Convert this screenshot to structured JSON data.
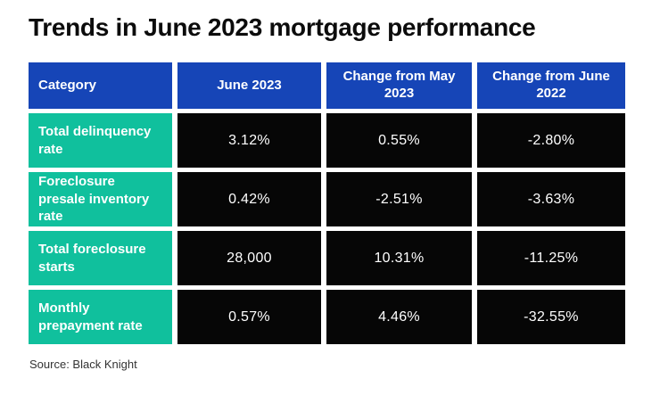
{
  "colors": {
    "header_bg": "#1645b7",
    "category_bg": "#10c09d",
    "cell_bg": "#060606",
    "header_text": "#ffffff",
    "cell_text": "#ffffff",
    "title_text": "#0c0c0c",
    "source_text": "#333333",
    "page_bg": "#ffffff"
  },
  "chart_data": {
    "type": "table",
    "title": "Trends in June 2023 mortgage performance",
    "columns": [
      "Category",
      "June 2023",
      "Change from May 2023",
      "Change from June 2022"
    ],
    "rows": [
      [
        "Total delinquency rate",
        "3.12%",
        "0.55%",
        "-2.80%"
      ],
      [
        "Foreclosure presale inventory rate",
        "0.42%",
        "-2.51%",
        "-3.63%"
      ],
      [
        "Total foreclosure starts",
        "28,000",
        "10.31%",
        "-11.25%"
      ],
      [
        "Monthly prepayment rate",
        "0.57%",
        "4.46%",
        "-32.55%"
      ]
    ],
    "source": "Source: Black Knight",
    "legend_position": "none",
    "grid": false
  }
}
